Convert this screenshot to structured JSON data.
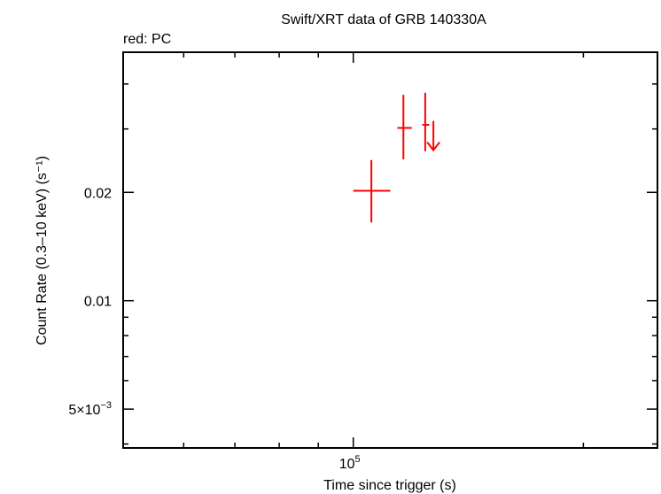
{
  "chart_data": {
    "type": "scatter",
    "title": "Swift/XRT data of GRB 140330A",
    "subtitle": "red: PC",
    "xlabel": "Time since trigger (s)",
    "ylabel": "Count Rate (0.3–10 keV) (s⁻¹)",
    "x_scale": "log",
    "y_scale": "log",
    "xlim": [
      50000,
      250000
    ],
    "ylim": [
      0.0039,
      0.049
    ],
    "x_ticks": [
      {
        "value": 100000,
        "base": "10",
        "exp": "5"
      }
    ],
    "y_ticks": [
      {
        "value": 0.005,
        "mant": "5×10",
        "exp": "−3"
      },
      {
        "value": 0.01,
        "label": "0.01"
      },
      {
        "value": 0.02,
        "label": "0.02"
      }
    ],
    "color": "#ff0000",
    "series": [
      {
        "points": [
          {
            "x": 105600,
            "x_lo": 100000,
            "x_hi": 111800,
            "y": 0.0202,
            "y_lo": 0.0165,
            "y_hi": 0.0246
          },
          {
            "x": 116300,
            "x_lo": 114200,
            "x_hi": 119300,
            "y": 0.0302,
            "y_lo": 0.0247,
            "y_hi": 0.0373
          },
          {
            "x": 124200,
            "x_lo": 123100,
            "x_hi": 125700,
            "y": 0.0308,
            "y_lo": 0.026,
            "y_hi": 0.0378
          }
        ],
        "upper_limits": [
          {
            "x": 127300,
            "y": 0.0262
          }
        ]
      }
    ]
  }
}
